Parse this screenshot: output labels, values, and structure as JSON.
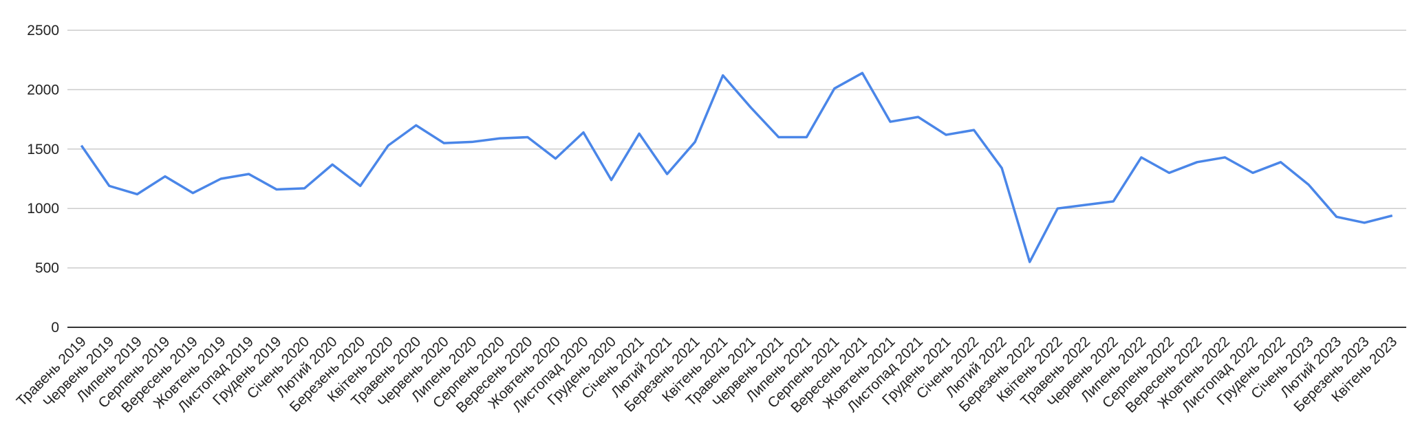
{
  "chart_data": {
    "type": "line",
    "categories": [
      "Травень 2019",
      "Червень 2019",
      "Липень 2019",
      "Серпень 2019",
      "Вересень 2019",
      "Жовтень 2019",
      "Листопад 2019",
      "Грудень 2019",
      "Січень 2020",
      "Лютий 2020",
      "Березень 2020",
      "Квітень 2020",
      "Травень 2020",
      "Червень 2020",
      "Липень 2020",
      "Серпень 2020",
      "Вересень 2020",
      "Жовтень 2020",
      "Листопад 2020",
      "Грудень 2020",
      "Січень 2021",
      "Лютий 2021",
      "Березень 2021",
      "Квітень 2021",
      "Травень 2021",
      "Червень 2021",
      "Липень 2021",
      "Серпень 2021",
      "Вересень 2021",
      "Жовтень 2021",
      "Листопад 2021",
      "Грудень 2021",
      "Січень 2022",
      "Лютий 2022",
      "Березень 2022",
      "Квітень 2022",
      "Травень 2022",
      "Червень 2022",
      "Липень 2022",
      "Серпень 2022",
      "Вересень 2022",
      "Жовтень 2022",
      "Листопад 2022",
      "Грудень 2022",
      "Січень 2023",
      "Лютий 2023",
      "Березень 2023",
      "Квітень 2023"
    ],
    "values": [
      1530,
      1190,
      1120,
      1270,
      1130,
      1250,
      1290,
      1160,
      1170,
      1370,
      1190,
      1530,
      1700,
      1550,
      1560,
      1590,
      1600,
      1420,
      1640,
      1240,
      1630,
      1290,
      1560,
      2120,
      1850,
      1600,
      1600,
      2010,
      2140,
      1730,
      1770,
      1620,
      1660,
      1340,
      550,
      1000,
      1030,
      1060,
      1430,
      1300,
      1390,
      1430,
      1300,
      1390,
      1200,
      930,
      880,
      940
    ],
    "color": "#4a86e8",
    "ylim": [
      0,
      2500
    ],
    "yticks": [
      0,
      500,
      1000,
      1500,
      2000,
      2500
    ],
    "grid": true
  }
}
